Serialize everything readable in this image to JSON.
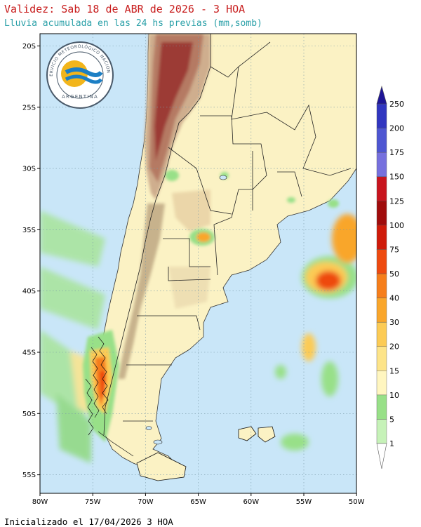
{
  "header": {
    "title": "Validez: Sab 18 de ABR de 2026 - 3 HOA",
    "subtitle": "Lluvia acumulada en las 24 hs previas (mm,somb)"
  },
  "footer": {
    "init_text": "Inicializado el 17/04/2026 3 HOA"
  },
  "logo": {
    "arc_text": "SERVICIO METEOROLÓGICO NACIONAL",
    "bottom_text": "ARGENTINA",
    "colors": {
      "sun": "#f2b51b",
      "waves": "#1c7fc4",
      "text": "#4a5a6a"
    }
  },
  "map": {
    "lat_labels": [
      "20S",
      "25S",
      "30S",
      "35S",
      "40S",
      "45S",
      "50S",
      "55S"
    ],
    "lon_labels": [
      "80W",
      "75W",
      "70W",
      "65W",
      "60W",
      "55W",
      "50W"
    ],
    "colors": {
      "ocean": "#c9e6f8",
      "land": "#fbf2c4",
      "border": "#222222",
      "grid": "#7a9aa8"
    }
  },
  "colorbar": {
    "levels": [
      "1",
      "5",
      "10",
      "15",
      "20",
      "30",
      "40",
      "50",
      "75",
      "100",
      "125",
      "150",
      "175",
      "200",
      "250"
    ],
    "colors": [
      "#c6f2b8",
      "#98e088",
      "#fff6c0",
      "#fde489",
      "#fccb55",
      "#f9a62b",
      "#f67e1b",
      "#ee4a10",
      "#cf1b0a",
      "#a00c0c",
      "#c8141e",
      "#7670de",
      "#4e56d2",
      "#3136c0",
      "#1e1596"
    ]
  }
}
